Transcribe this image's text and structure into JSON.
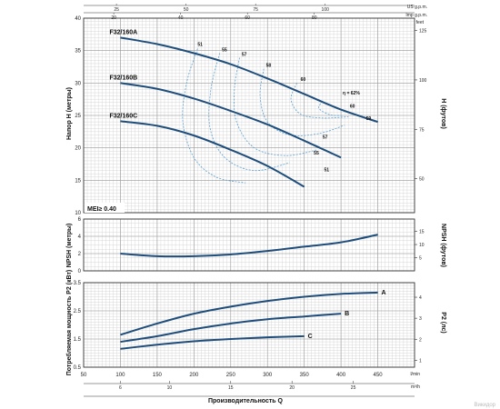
{
  "colors": {
    "curve": "#1e4d7b",
    "efficiency": "#5a9fd4",
    "grid": "#c8c8c8",
    "frame": "#333333"
  },
  "watermark": "Викидор",
  "top_axes": {
    "us_gpm": {
      "unit": "US g.p.m.",
      "ticks": [
        {
          "value": 25,
          "label": "25"
        },
        {
          "value": 50,
          "label": "50"
        },
        {
          "value": 75,
          "label": "75"
        },
        {
          "value": 100,
          "label": "100"
        }
      ]
    },
    "imp_gpm": {
      "unit": "Imp g.p.m.",
      "ticks": [
        {
          "value": 20,
          "label": "20"
        },
        {
          "value": 40,
          "label": "40"
        },
        {
          "value": 60,
          "label": "60"
        },
        {
          "value": 80,
          "label": "80"
        }
      ]
    }
  },
  "bottom_axes": {
    "l_min": {
      "unit": "l/min",
      "ticks": [
        {
          "value": 50,
          "label": "50"
        },
        {
          "value": 100,
          "label": "100"
        },
        {
          "value": 150,
          "label": "150"
        },
        {
          "value": 200,
          "label": "200"
        },
        {
          "value": 250,
          "label": "250"
        },
        {
          "value": 300,
          "label": "300"
        },
        {
          "value": 350,
          "label": "350"
        },
        {
          "value": 400,
          "label": "400"
        },
        {
          "value": 450,
          "label": "450"
        }
      ]
    },
    "m3_h": {
      "unit": "m³/h",
      "ticks": [
        {
          "value": 6,
          "label": "6"
        },
        {
          "value": 10,
          "label": "10"
        },
        {
          "value": 15,
          "label": "15"
        },
        {
          "value": 20,
          "label": "20"
        },
        {
          "value": 25,
          "label": "25"
        }
      ]
    },
    "title": "Производительность Q"
  },
  "chart_data": [
    {
      "type": "line",
      "panel": "head",
      "ylabel": "Напор H (метры)",
      "y2label": "H (футов)",
      "ylim": [
        10,
        40
      ],
      "yticks": [
        "10",
        "15",
        "20",
        "25",
        "30",
        "35",
        "40"
      ],
      "y2ticks": [
        "50",
        "75",
        "100",
        "125"
      ],
      "y2_unit": "feet",
      "xlim": [
        50,
        500
      ],
      "series": [
        {
          "name": "F32/160A",
          "x": [
            100,
            150,
            200,
            250,
            300,
            350,
            400,
            450
          ],
          "y": [
            37,
            36,
            34.6,
            32.9,
            30.7,
            28.3,
            25.9,
            24
          ]
        },
        {
          "name": "F32/160B",
          "x": [
            100,
            150,
            200,
            250,
            300,
            350,
            400
          ],
          "y": [
            30,
            29.1,
            27.6,
            25.7,
            23.6,
            21.1,
            18.5
          ]
        },
        {
          "name": "F32/160C",
          "x": [
            100,
            150,
            200,
            250,
            300,
            350
          ],
          "y": [
            24.1,
            23.4,
            21.9,
            19.7,
            17.2,
            14
          ]
        }
      ],
      "efficiency_points": [
        "51",
        "55",
        "57",
        "58",
        "60",
        "60",
        "59",
        "57",
        "55",
        "51"
      ],
      "efficiency_label": "η = 62%",
      "annotation": "MEI≥ 0.40"
    },
    {
      "type": "line",
      "panel": "npsh",
      "ylabel": "NPSH (метры)",
      "y2label": "NPSH (футов)",
      "ylim": [
        0,
        6
      ],
      "yticks": [
        "0",
        "2",
        "4",
        "6"
      ],
      "y2ticks": [
        "5",
        "10",
        "15"
      ],
      "series": [
        {
          "name": "",
          "x": [
            100,
            150,
            200,
            250,
            300,
            350,
            400,
            450
          ],
          "y": [
            2,
            1.7,
            1.7,
            1.9,
            2.3,
            2.8,
            3.3,
            4.2
          ]
        }
      ]
    },
    {
      "type": "line",
      "panel": "power",
      "ylabel": "Потребляемая мощность P2 (кВт)",
      "y2label": "P2 (лс)",
      "ylim": [
        0.5,
        3.5
      ],
      "yticks": [
        "0.5",
        "1.5",
        "2.5",
        "3.5"
      ],
      "y2ticks": [
        "1",
        "2",
        "3",
        "4"
      ],
      "series": [
        {
          "name": "A",
          "x": [
            100,
            150,
            200,
            250,
            300,
            350,
            400,
            450
          ],
          "y": [
            1.65,
            2.05,
            2.4,
            2.65,
            2.85,
            3.0,
            3.1,
            3.15
          ]
        },
        {
          "name": "B",
          "x": [
            100,
            150,
            200,
            250,
            300,
            350,
            400
          ],
          "y": [
            1.4,
            1.6,
            1.85,
            2.05,
            2.2,
            2.3,
            2.4
          ]
        },
        {
          "name": "C",
          "x": [
            100,
            150,
            200,
            250,
            300,
            350
          ],
          "y": [
            1.15,
            1.3,
            1.42,
            1.5,
            1.56,
            1.6
          ]
        }
      ]
    }
  ]
}
